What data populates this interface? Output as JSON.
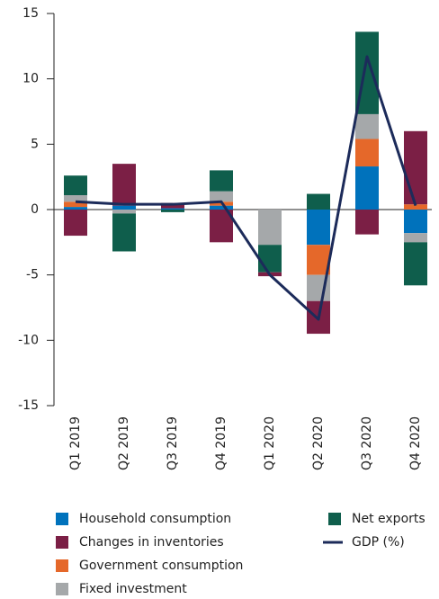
{
  "chart_data": {
    "type": "bar",
    "stacked": true,
    "categories": [
      "Q1 2019",
      "Q2 2019",
      "Q3 2019",
      "Q4 2019",
      "Q1 2020",
      "Q2 2020",
      "Q3 2020",
      "Q4 2020"
    ],
    "series": [
      {
        "name": "Household consumption",
        "color": "#0072bc",
        "values": [
          0.2,
          0.3,
          0.1,
          0.3,
          0,
          -2.7,
          3.3,
          -1.8
        ]
      },
      {
        "name": "Changes in inventories",
        "color": "#7b1f45",
        "values": [
          -2.0,
          3.2,
          0.4,
          -2.5,
          -0.3,
          -2.5,
          -1.9,
          5.6
        ]
      },
      {
        "name": "Government consumption",
        "color": "#e5682a",
        "values": [
          0.4,
          0,
          0,
          0.3,
          0,
          -2.3,
          2.1,
          0.4
        ]
      },
      {
        "name": "Fixed investment",
        "color": "#a5a8aa",
        "values": [
          0.5,
          -0.3,
          0,
          0.8,
          -2.7,
          -2.0,
          1.9,
          -0.7
        ]
      },
      {
        "name": "Net exports",
        "color": "#0f5e4c",
        "values": [
          1.5,
          -2.9,
          -0.2,
          1.6,
          -2.1,
          1.2,
          6.3,
          -3.3
        ]
      },
      {
        "name": "GDP (%)",
        "color": "#1c2b5a",
        "type": "line",
        "values": [
          0.6,
          0.4,
          0.4,
          0.6,
          -5.0,
          -8.4,
          11.7,
          0.3
        ]
      }
    ],
    "stack_order": [
      0,
      2,
      3,
      4,
      1
    ],
    "ylim": [
      -15,
      15
    ],
    "yticks": [
      -15,
      -10,
      -5,
      0,
      5,
      10,
      15
    ],
    "grid": false
  }
}
